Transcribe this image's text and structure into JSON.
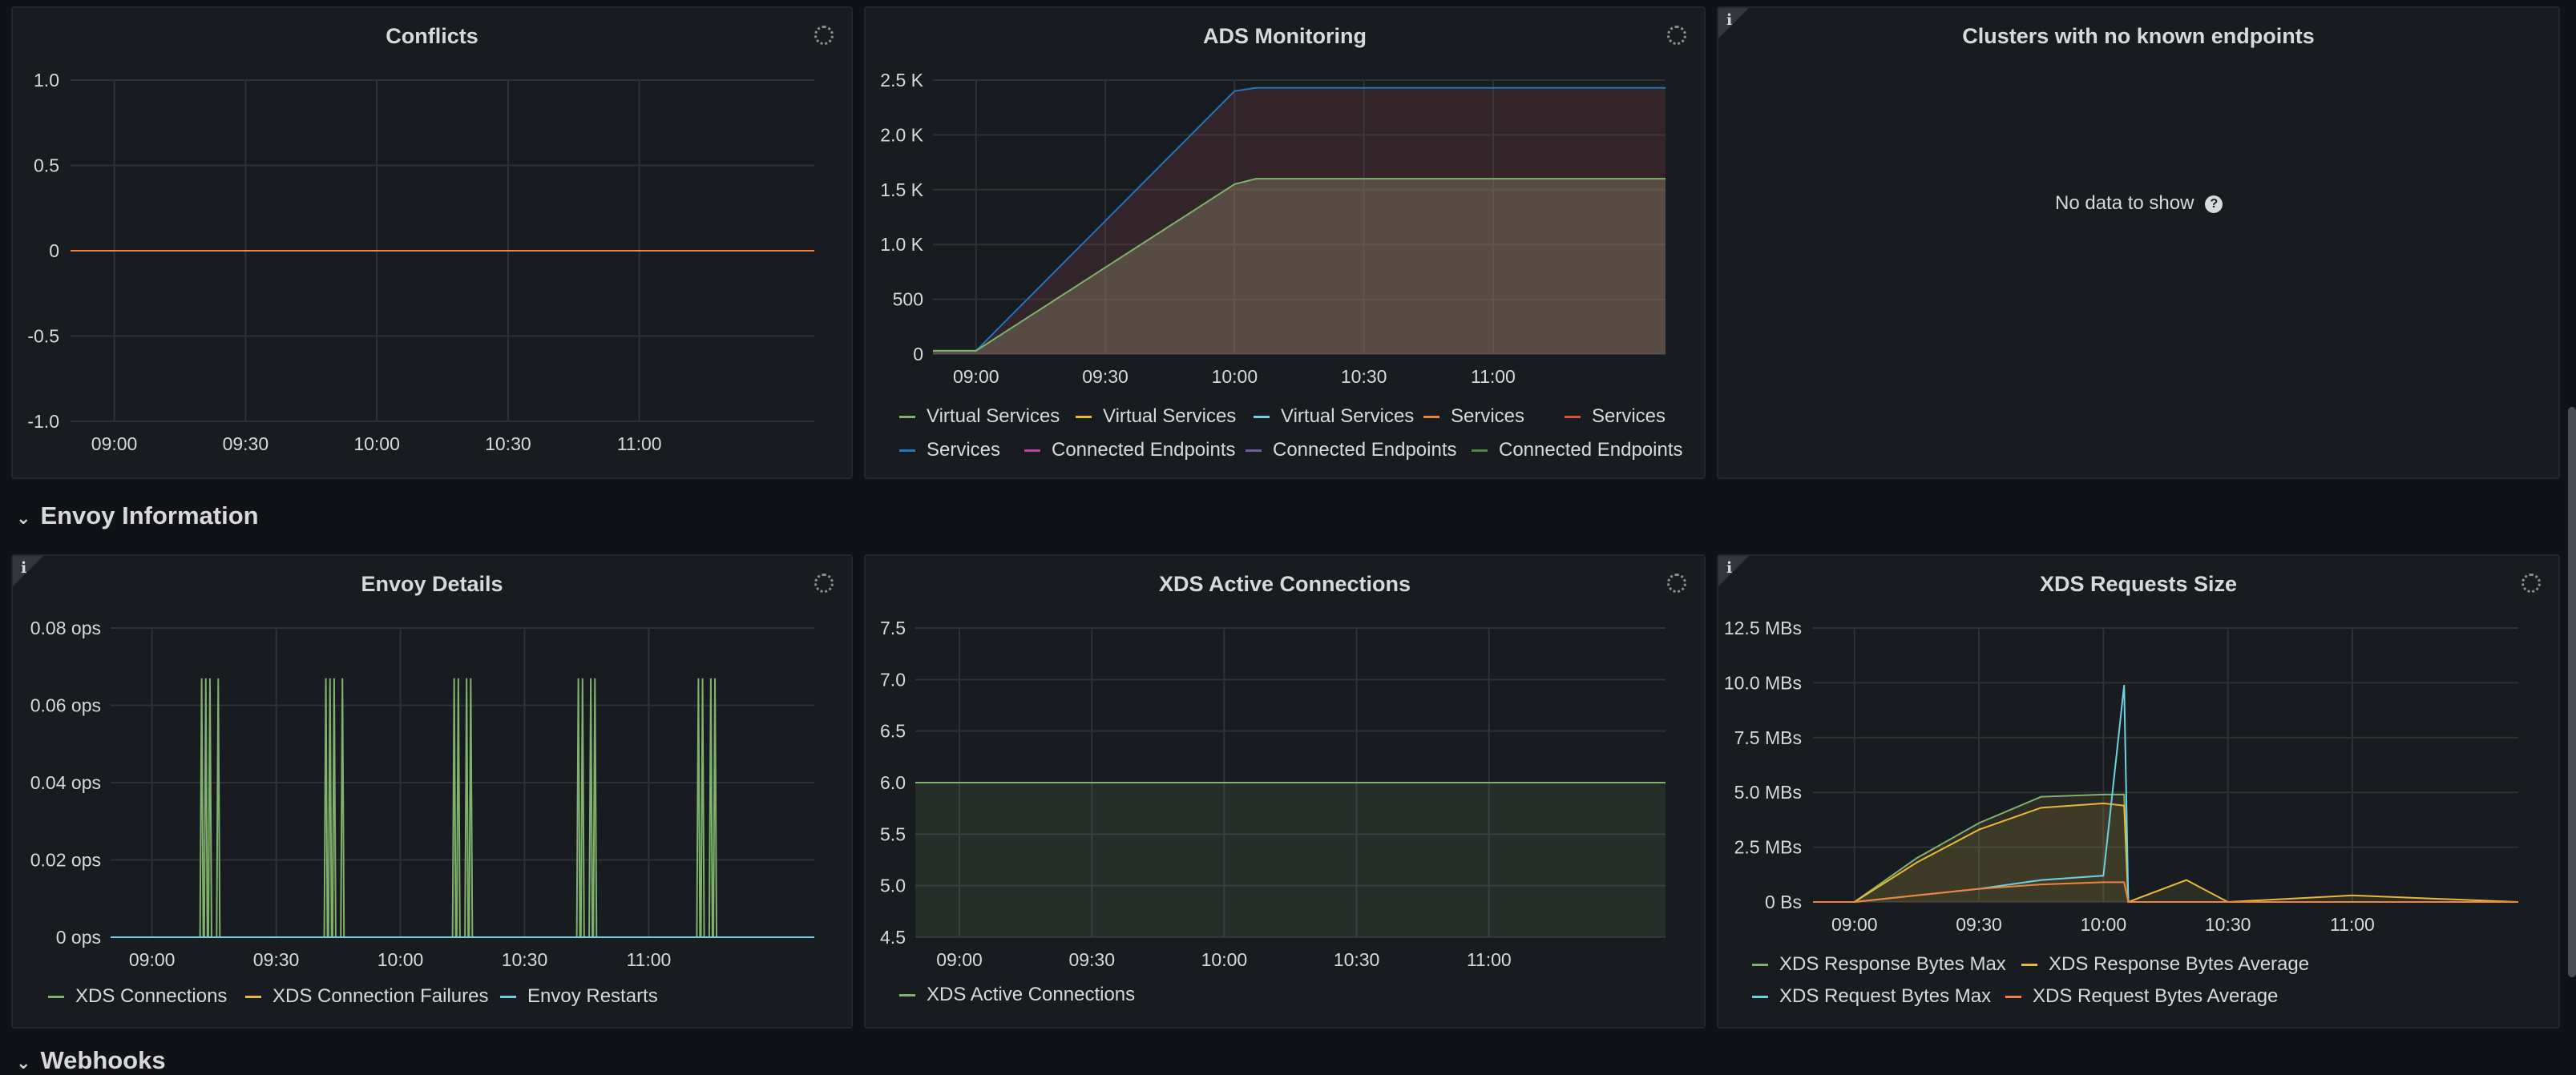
{
  "panels": {
    "conflicts": {
      "title": "Conflicts",
      "y_ticks": [
        "1.0",
        "0.5",
        "0",
        "-0.5",
        "-1.0"
      ],
      "x_ticks": [
        "09:00",
        "09:30",
        "10:00",
        "10:30",
        "11:00"
      ]
    },
    "ads": {
      "title": "ADS Monitoring",
      "y_ticks": [
        "2.5 K",
        "2.0 K",
        "1.5 K",
        "1.0 K",
        "500",
        "0"
      ],
      "x_ticks": [
        "09:00",
        "09:30",
        "10:00",
        "10:30",
        "11:00"
      ],
      "legend": [
        {
          "label": "Virtual Services",
          "color": "#7eb26d"
        },
        {
          "label": "Virtual Services",
          "color": "#eab839"
        },
        {
          "label": "Virtual Services",
          "color": "#6ed0e0"
        },
        {
          "label": "Services",
          "color": "#ef843c"
        },
        {
          "label": "Services",
          "color": "#e24d42"
        },
        {
          "label": "Services",
          "color": "#1f78c1"
        },
        {
          "label": "Connected Endpoints",
          "color": "#ba43a9"
        },
        {
          "label": "Connected Endpoints",
          "color": "#705da0"
        },
        {
          "label": "Connected Endpoints",
          "color": "#508642"
        }
      ]
    },
    "clusters": {
      "title": "Clusters with no known endpoints",
      "no_data": "No data to show"
    },
    "envoy_details": {
      "title": "Envoy Details",
      "y_ticks": [
        "0.08 ops",
        "0.06 ops",
        "0.04 ops",
        "0.02 ops",
        "0 ops"
      ],
      "x_ticks": [
        "09:00",
        "09:30",
        "10:00",
        "10:30",
        "11:00"
      ],
      "legend": [
        {
          "label": "XDS Connections",
          "color": "#7eb26d"
        },
        {
          "label": "XDS Connection Failures",
          "color": "#eab839"
        },
        {
          "label": "Envoy Restarts",
          "color": "#6ed0e0"
        }
      ]
    },
    "xds_active": {
      "title": "XDS Active Connections",
      "y_ticks": [
        "7.5",
        "7.0",
        "6.5",
        "6.0",
        "5.5",
        "5.0",
        "4.5"
      ],
      "x_ticks": [
        "09:00",
        "09:30",
        "10:00",
        "10:30",
        "11:00"
      ],
      "legend": [
        {
          "label": "XDS Active Connections",
          "color": "#7eb26d"
        }
      ]
    },
    "xds_size": {
      "title": "XDS Requests Size",
      "y_ticks": [
        "12.5 MBs",
        "10.0 MBs",
        "7.5 MBs",
        "5.0 MBs",
        "2.5 MBs",
        "0 Bs"
      ],
      "x_ticks": [
        "09:00",
        "09:30",
        "10:00",
        "10:30",
        "11:00"
      ],
      "legend": [
        {
          "label": "XDS Response Bytes Max",
          "color": "#7eb26d"
        },
        {
          "label": "XDS Response Bytes Average",
          "color": "#eab839"
        },
        {
          "label": "XDS Request Bytes Max",
          "color": "#6ed0e0"
        },
        {
          "label": "XDS Request Bytes Average",
          "color": "#ef843c"
        }
      ]
    }
  },
  "rows": {
    "envoy_information": "Envoy Information",
    "webhooks": "Webhooks"
  },
  "chart_data": [
    {
      "type": "line",
      "title": "Conflicts",
      "x": [
        "08:50",
        "11:40"
      ],
      "series": [
        {
          "values": [
            0,
            0
          ],
          "color": "#ef843c"
        }
      ],
      "ylim": [
        -1.0,
        1.0
      ]
    },
    {
      "type": "area",
      "title": "ADS Monitoring",
      "x": [
        "08:50",
        "09:00",
        "10:00",
        "10:05",
        "11:40"
      ],
      "series": [
        {
          "values": [
            30,
            30,
            2400,
            2430,
            2430
          ],
          "color": "#1f78c1"
        },
        {
          "values": [
            30,
            30,
            1550,
            1600,
            1600
          ],
          "color": "#7eb26d"
        }
      ],
      "ylim": [
        0,
        2500
      ]
    },
    {
      "type": "line",
      "title": "Envoy Details",
      "x_range": [
        "08:50",
        "11:40"
      ],
      "series": [
        {
          "name": "XDS Connections",
          "color": "#7eb26d",
          "spike_times": [
            "09:12",
            "09:13",
            "09:14",
            "09:16",
            "09:42",
            "09:43",
            "09:44",
            "09:46",
            "10:13",
            "10:14",
            "10:16",
            "10:17",
            "10:43",
            "10:44",
            "10:46",
            "10:47",
            "11:12",
            "11:13",
            "11:15",
            "11:16"
          ],
          "spike_value": 0.067
        },
        {
          "name": "Envoy Restarts",
          "color": "#6ed0e0",
          "values": [
            0,
            0
          ]
        }
      ],
      "ylim": [
        0,
        0.08
      ]
    },
    {
      "type": "area",
      "title": "XDS Active Connections",
      "x": [
        "08:50",
        "11:40"
      ],
      "series": [
        {
          "name": "XDS Active Connections",
          "values": [
            6.0,
            6.0
          ],
          "color": "#7eb26d"
        }
      ],
      "ylim": [
        4.5,
        7.5
      ]
    },
    {
      "type": "area",
      "title": "XDS Requests Size",
      "x": [
        "08:50",
        "09:00",
        "09:15",
        "09:30",
        "09:45",
        "10:00",
        "10:05",
        "10:06",
        "10:20",
        "10:30",
        "11:00",
        "11:40"
      ],
      "series": [
        {
          "name": "XDS Response Bytes Max",
          "color": "#7eb26d",
          "values": [
            0,
            0,
            2.0,
            3.6,
            4.8,
            4.9,
            4.9,
            0,
            0,
            0,
            0,
            0
          ]
        },
        {
          "name": "XDS Response Bytes Average",
          "color": "#eab839",
          "values": [
            0,
            0,
            1.8,
            3.3,
            4.3,
            4.5,
            4.4,
            0,
            1.0,
            0,
            0.3,
            0
          ]
        },
        {
          "name": "XDS Request Bytes Max",
          "color": "#6ed0e0",
          "values": [
            0,
            0,
            0.3,
            0.6,
            1.0,
            1.2,
            9.9,
            0,
            0,
            0,
            0,
            0
          ]
        },
        {
          "name": "XDS Request Bytes Average",
          "color": "#ef843c",
          "values": [
            0,
            0,
            0.3,
            0.6,
            0.8,
            0.9,
            0.9,
            0,
            0,
            0,
            0,
            0
          ]
        }
      ],
      "ylim": [
        0,
        12.5
      ]
    }
  ]
}
